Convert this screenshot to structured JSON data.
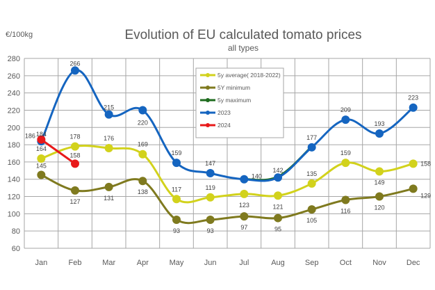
{
  "chart_data": {
    "type": "line",
    "title": "Evolution of EU calculated tomato prices",
    "subtitle": "all types",
    "ylabel": "€/100kg",
    "xlabel": "",
    "categories": [
      "Jan",
      "Feb",
      "Mar",
      "Apr",
      "May",
      "Jun",
      "Jul",
      "Aug",
      "Sep",
      "Oct",
      "Nov",
      "Dec"
    ],
    "ylim": [
      60,
      280
    ],
    "yticks": [
      60,
      80,
      100,
      120,
      140,
      160,
      180,
      200,
      220,
      240,
      260,
      280
    ],
    "grid": true,
    "legend_position": "top-center",
    "series": [
      {
        "name": "5y maximum",
        "color": "#1e6b1e",
        "values": [
          null,
          null,
          null,
          null,
          null,
          null,
          140,
          143,
          178,
          null,
          null,
          null
        ],
        "labels": false
      },
      {
        "name": "5Y minimum",
        "color": "#7f7a1f",
        "values": [
          145,
          127,
          131,
          138,
          93,
          93,
          97,
          95,
          105,
          116,
          120,
          129
        ],
        "labels": true
      },
      {
        "name": "5y average( 2018-2022)",
        "color": "#d2d21c",
        "values": [
          164,
          178,
          176,
          169,
          117,
          119,
          123,
          121,
          135,
          159,
          149,
          158
        ],
        "labels": true
      },
      {
        "name": "2023",
        "color": "#1565c0",
        "values": [
          184,
          266,
          215,
          220,
          159,
          147,
          140,
          142,
          177,
          209,
          193,
          223
        ],
        "labels": true
      },
      {
        "name": "2024",
        "color": "#e8191a",
        "values": [
          186,
          158,
          null,
          null,
          null,
          null,
          null,
          null,
          null,
          null,
          null,
          null
        ],
        "labels": true
      }
    ],
    "legend_order": [
      "5y average( 2018-2022)",
      "5Y minimum",
      "5y maximum",
      "2023",
      "2024"
    ]
  }
}
